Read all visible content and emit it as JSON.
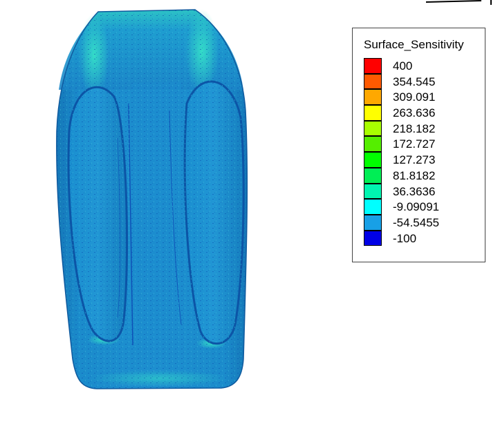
{
  "legend": {
    "title": "Surface_Sensitivity",
    "entries": [
      {
        "label": "400",
        "color": "#ff0000"
      },
      {
        "label": "354.545",
        "color": "#ff5a00"
      },
      {
        "label": "309.091",
        "color": "#ffa800"
      },
      {
        "label": "263.636",
        "color": "#ffff00"
      },
      {
        "label": "218.182",
        "color": "#a8ff00"
      },
      {
        "label": "172.727",
        "color": "#55ee00"
      },
      {
        "label": "127.273",
        "color": "#00ff00"
      },
      {
        "label": "81.8182",
        "color": "#00ee55"
      },
      {
        "label": "36.3636",
        "color": "#00f5b0"
      },
      {
        "label": "-9.09091",
        "color": "#00ffff"
      },
      {
        "label": "-54.5455",
        "color": "#18a0e6"
      },
      {
        "label": "-100",
        "color": "#0000e6"
      }
    ]
  },
  "colors": {
    "surface_base": "#1b86c8",
    "surface_light": "#2fa6c6",
    "surface_shadow": "#0f5a9e",
    "surface_accent": "#23d8c4"
  }
}
